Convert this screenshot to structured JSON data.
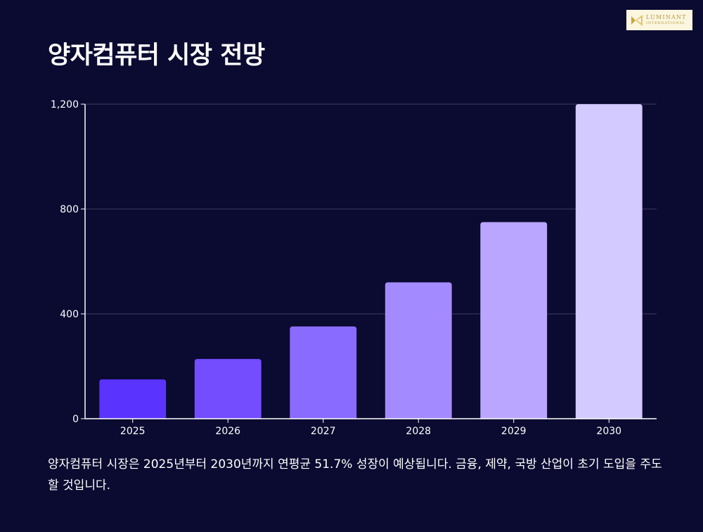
{
  "brand": {
    "name": "LUMINANT",
    "sub": "INTERNATIONAL"
  },
  "title": "양자컴퓨터 시장 전망",
  "description": "양자컴퓨터 시장은 2025년부터 2030년까지 연평균 51.7% 성장이 예상됩니다. 금융, 제약, 국방 산업이 초기 도입을 주도할 것입니다.",
  "colors": {
    "background": "#0b0a30",
    "grid": "#3b3a63",
    "axis": "#ffffff",
    "bars": [
      "#5b33ff",
      "#734dff",
      "#8a6bff",
      "#a38aff",
      "#bba6ff",
      "#d3caff"
    ]
  },
  "chart_data": {
    "type": "bar",
    "categories": [
      "2025",
      "2026",
      "2027",
      "2028",
      "2029",
      "2030"
    ],
    "values": [
      150,
      228,
      352,
      520,
      750,
      1200
    ],
    "ylim": [
      0,
      1200
    ],
    "yticks": [
      0,
      400,
      800,
      1200
    ],
    "ytick_labels": [
      "0",
      "400",
      "800",
      "1,200"
    ],
    "grid": true,
    "legend": "none",
    "xlabel": "",
    "ylabel": ""
  }
}
